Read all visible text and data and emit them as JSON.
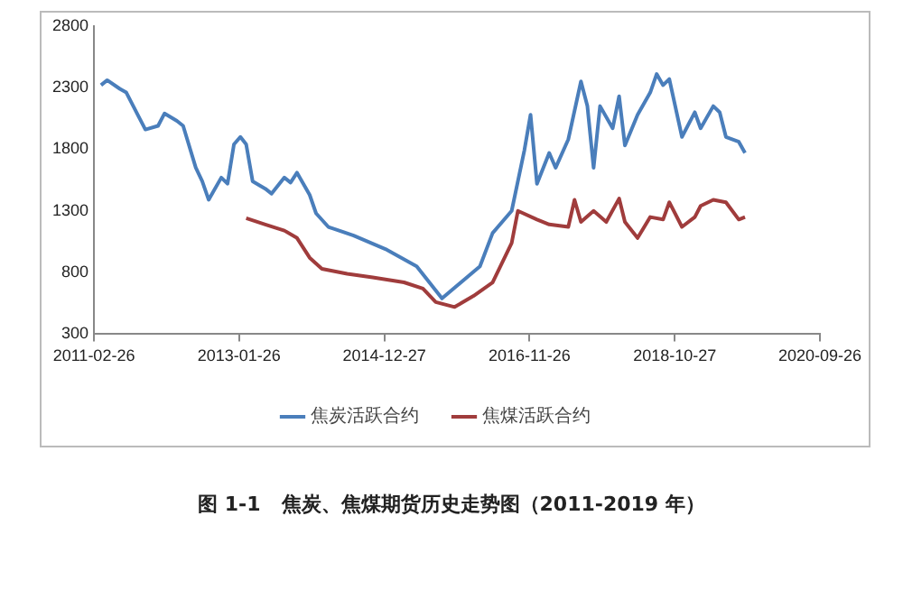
{
  "chart_data": {
    "type": "line",
    "title": "图 1-1   焦炭、焦煤期货历史走势图（2011-2019 年）",
    "series": [
      {
        "name": "焦炭活跃合约",
        "color": "#4a7ebb",
        "x": [
          "2011-04",
          "2011-05",
          "2011-07",
          "2011-08",
          "2011-10",
          "2011-11",
          "2012-01",
          "2012-02",
          "2012-04",
          "2012-05",
          "2012-07",
          "2012-08",
          "2012-09",
          "2012-11",
          "2012-12",
          "2013-01",
          "2013-02",
          "2013-03",
          "2013-04",
          "2013-06",
          "2013-07",
          "2013-09",
          "2013-10",
          "2013-11",
          "2014-01",
          "2014-02",
          "2014-04",
          "2014-08",
          "2015-01",
          "2015-06",
          "2015-10",
          "2016-04",
          "2016-06",
          "2016-09",
          "2016-11",
          "2016-12",
          "2017-01",
          "2017-03",
          "2017-04",
          "2017-06",
          "2017-08",
          "2017-09",
          "2017-10",
          "2017-11",
          "2018-01",
          "2018-02",
          "2018-03",
          "2018-05",
          "2018-07",
          "2018-08",
          "2018-09",
          "2018-10",
          "2018-12",
          "2019-02",
          "2019-03",
          "2019-05",
          "2019-06",
          "2019-07",
          "2019-09",
          "2019-10"
        ],
        "values": [
          2320,
          2360,
          2290,
          2260,
          2060,
          1960,
          1990,
          2090,
          2030,
          1990,
          1650,
          1540,
          1390,
          1570,
          1520,
          1840,
          1900,
          1840,
          1540,
          1480,
          1440,
          1570,
          1530,
          1610,
          1430,
          1280,
          1170,
          1100,
          990,
          850,
          590,
          850,
          1120,
          1300,
          1790,
          2080,
          1520,
          1770,
          1650,
          1880,
          2350,
          2150,
          1650,
          2150,
          1970,
          2230,
          1830,
          2080,
          2260,
          2410,
          2320,
          2370,
          1900,
          2100,
          1970,
          2150,
          2100,
          1900,
          1860,
          1770
        ]
      },
      {
        "name": "焦煤活跃合约",
        "color": "#a03c3c",
        "x": [
          "2013-03",
          "2013-06",
          "2013-09",
          "2013-11",
          "2014-01",
          "2014-03",
          "2014-07",
          "2014-11",
          "2015-04",
          "2015-07",
          "2015-09",
          "2015-12",
          "2016-03",
          "2016-06",
          "2016-09",
          "2016-10",
          "2017-01",
          "2017-03",
          "2017-06",
          "2017-07",
          "2017-08",
          "2017-10",
          "2017-12",
          "2018-02",
          "2018-03",
          "2018-05",
          "2018-07",
          "2018-09",
          "2018-10",
          "2018-12",
          "2019-02",
          "2019-03",
          "2019-05",
          "2019-07",
          "2019-09",
          "2019-10"
        ],
        "values": [
          1240,
          1190,
          1140,
          1080,
          920,
          830,
          790,
          760,
          720,
          670,
          560,
          520,
          610,
          720,
          1040,
          1300,
          1230,
          1190,
          1170,
          1390,
          1210,
          1300,
          1210,
          1400,
          1210,
          1080,
          1250,
          1230,
          1370,
          1170,
          1250,
          1340,
          1390,
          1370,
          1230,
          1250
        ]
      }
    ],
    "xlim": [
      "2011-02-26",
      "2020-09-26"
    ],
    "xticks": [
      "2011-02-26",
      "2013-01-26",
      "2014-12-27",
      "2016-11-26",
      "2018-10-27",
      "2020-09-26"
    ],
    "ylim": [
      300,
      2800
    ],
    "yticks": [
      300,
      800,
      1300,
      1800,
      2300,
      2800
    ],
    "grid": false,
    "legend": "bottom",
    "marker": "none",
    "line_style": "solid"
  }
}
